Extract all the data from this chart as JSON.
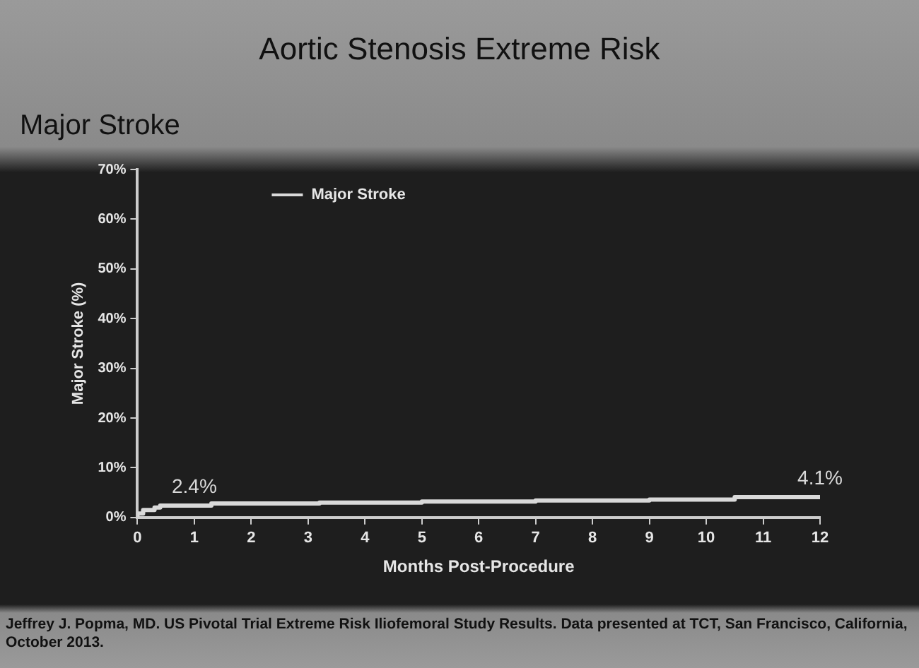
{
  "chart_data": {
    "type": "step",
    "title": "Aortic Stenosis Extreme Risk",
    "subtitle": "Major Stroke",
    "xlabel": "Months Post-Procedure",
    "ylabel": "Major Stroke (%)",
    "series": [
      {
        "name": "Major Stroke",
        "color": "#d9d9d9",
        "x": [
          0,
          0.1,
          0.3,
          0.4,
          1.3,
          3.2,
          5,
          7,
          9,
          10.5,
          12
        ],
        "values": [
          0,
          0.8,
          1.5,
          2.0,
          2.4,
          2.8,
          3.0,
          3.2,
          3.4,
          3.6,
          4.1
        ]
      }
    ],
    "xlim": [
      0,
      12
    ],
    "xticks": [
      0,
      1,
      2,
      3,
      4,
      5,
      6,
      7,
      8,
      9,
      10,
      11,
      12
    ],
    "ylim": [
      0,
      70
    ],
    "yticks": [
      {
        "value": 0,
        "label": "0%"
      },
      {
        "value": 10,
        "label": "10%"
      },
      {
        "value": 20,
        "label": "20%"
      },
      {
        "value": 30,
        "label": "30%"
      },
      {
        "value": 40,
        "label": "40%"
      },
      {
        "value": 50,
        "label": "50%"
      },
      {
        "value": 60,
        "label": "60%"
      },
      {
        "value": 70,
        "label": "70%"
      }
    ],
    "legend": "top left",
    "grid": false,
    "annotations": [
      {
        "text": "2.4%",
        "x": 1,
        "y": 2.4
      },
      {
        "text": "4.1%",
        "x": 12,
        "y": 4.1
      },
      "Jeffrey J. Popma, MD. US Pivotal Trial Extreme Risk Iliofemoral Study Results. Data presented at TCT, San Francisco, California, October 2013."
    ]
  }
}
